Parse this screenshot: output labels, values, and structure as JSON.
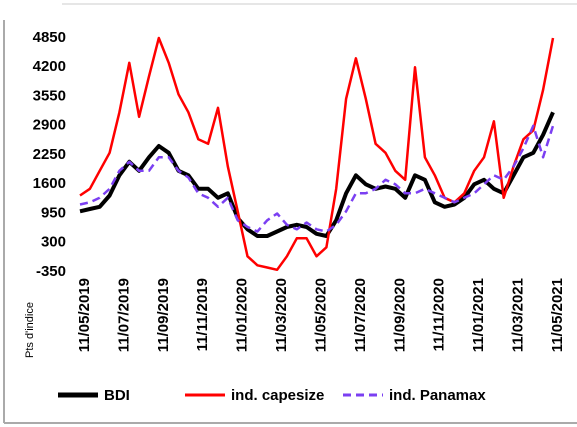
{
  "chart_data": {
    "type": "line",
    "y_label": "Pts d'indice",
    "categories": [
      "11/05/2019",
      null,
      null,
      null,
      "11/07/2019",
      null,
      null,
      null,
      "11/09/2019",
      null,
      null,
      null,
      "11/11/2019",
      null,
      null,
      null,
      "11/01/2020",
      null,
      null,
      null,
      "11/03/2020",
      null,
      null,
      null,
      "11/05/2020",
      null,
      null,
      null,
      "11/07/2020",
      null,
      null,
      null,
      "11/09/2020",
      null,
      null,
      null,
      "11/11/2020",
      null,
      null,
      null,
      "11/01/2021",
      null,
      null,
      null,
      "11/03/2021",
      null,
      null,
      null,
      "11/05/2021"
    ],
    "series": [
      {
        "name": "BDI",
        "color": "#000000",
        "dashed": false,
        "values": [
          1000,
          1050,
          1100,
          1350,
          1800,
          2100,
          1900,
          2200,
          2450,
          2300,
          1900,
          1800,
          1500,
          1500,
          1300,
          1400,
          850,
          600,
          450,
          450,
          550,
          650,
          700,
          650,
          500,
          450,
          800,
          1400,
          1800,
          1600,
          1500,
          1550,
          1500,
          1300,
          1800,
          1700,
          1200,
          1100,
          1150,
          1300,
          1600,
          1700,
          1500,
          1400,
          1800,
          2200,
          2300,
          2700,
          3200
        ]
      },
      {
        "name": "ind. capesize",
        "color": "#ff0000",
        "dashed": false,
        "values": [
          1350,
          1500,
          1900,
          2300,
          3200,
          4300,
          3100,
          4000,
          4850,
          4300,
          3600,
          3200,
          2600,
          2500,
          3300,
          2000,
          1000,
          0,
          -200,
          -250,
          -300,
          0,
          400,
          400,
          0,
          200,
          1500,
          3500,
          4400,
          3500,
          2500,
          2300,
          1900,
          1700,
          4200,
          2200,
          1800,
          1300,
          1200,
          1400,
          1900,
          2200,
          3000,
          1300,
          2000,
          2600,
          2800,
          3700,
          4850
        ]
      },
      {
        "name": "ind. Panamax",
        "color": "#7b3ff2",
        "dashed": true,
        "values": [
          1150,
          1200,
          1300,
          1500,
          1900,
          2100,
          1900,
          1900,
          2200,
          2200,
          1900,
          1750,
          1400,
          1300,
          1100,
          1300,
          800,
          650,
          550,
          800,
          950,
          700,
          600,
          750,
          600,
          550,
          700,
          1000,
          1400,
          1400,
          1500,
          1700,
          1600,
          1400,
          1400,
          1500,
          1400,
          1300,
          1200,
          1300,
          1400,
          1600,
          1800,
          1700,
          2000,
          2400,
          2900,
          2200,
          2900
        ]
      }
    ],
    "ylim": [
      -350,
      4850
    ],
    "yticks": [
      -350,
      300,
      950,
      1600,
      2250,
      2900,
      3550,
      4200,
      4850
    ],
    "grid": false,
    "legend": "bottom"
  }
}
